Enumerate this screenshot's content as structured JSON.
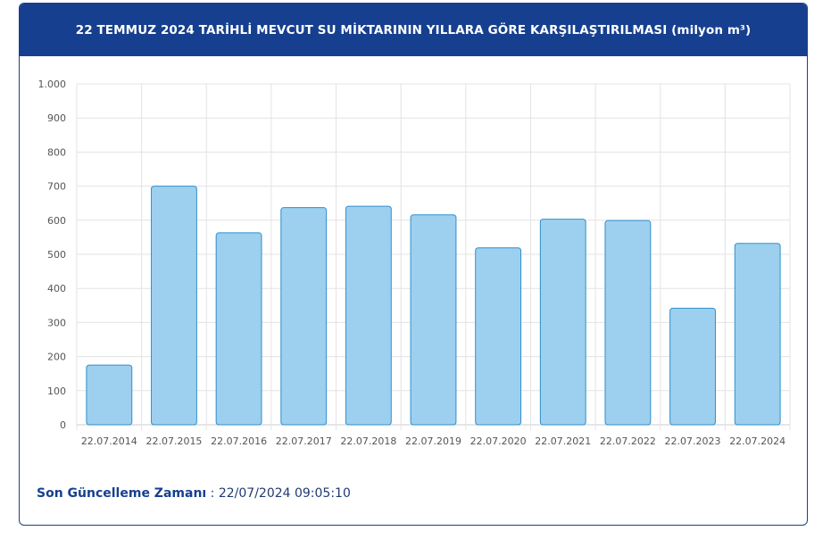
{
  "header": {
    "title": "22 TEMMUZ 2024 TARİHLİ MEVCUT SU MİKTARININ YILLARA GÖRE KARŞILAŞTIRILMASI (milyon m³)"
  },
  "footer": {
    "label": "Son Güncelleme Zamanı",
    "separator": " : ",
    "value": "22/07/2024 09:05:10"
  },
  "colors": {
    "header_bg": "#16408f",
    "bar_fill": "#9dd0ee",
    "bar_stroke": "#2f8fd0",
    "grid": "#e3e3e3"
  },
  "chart_data": {
    "type": "bar",
    "categories": [
      "22.07.2014",
      "22.07.2015",
      "22.07.2016",
      "22.07.2017",
      "22.07.2018",
      "22.07.2019",
      "22.07.2020",
      "22.07.2021",
      "22.07.2022",
      "22.07.2023",
      "22.07.2024"
    ],
    "values": [
      175,
      700,
      563,
      637,
      641,
      616,
      519,
      603,
      599,
      342,
      532
    ],
    "ylim": [
      0,
      1000
    ],
    "yticks": [
      0,
      100,
      200,
      300,
      400,
      500,
      600,
      700,
      800,
      900,
      1000
    ],
    "ytick_labels": [
      "0",
      "100",
      "200",
      "300",
      "400",
      "500",
      "600",
      "700",
      "800",
      "900",
      "1.000"
    ],
    "title": "22 TEMMUZ 2024 TARİHLİ MEVCUT SU MİKTARININ YILLARA GÖRE KARŞILAŞTIRILMASI (milyon m³)",
    "xlabel": "",
    "ylabel": "",
    "grid": true,
    "legend": "none"
  }
}
